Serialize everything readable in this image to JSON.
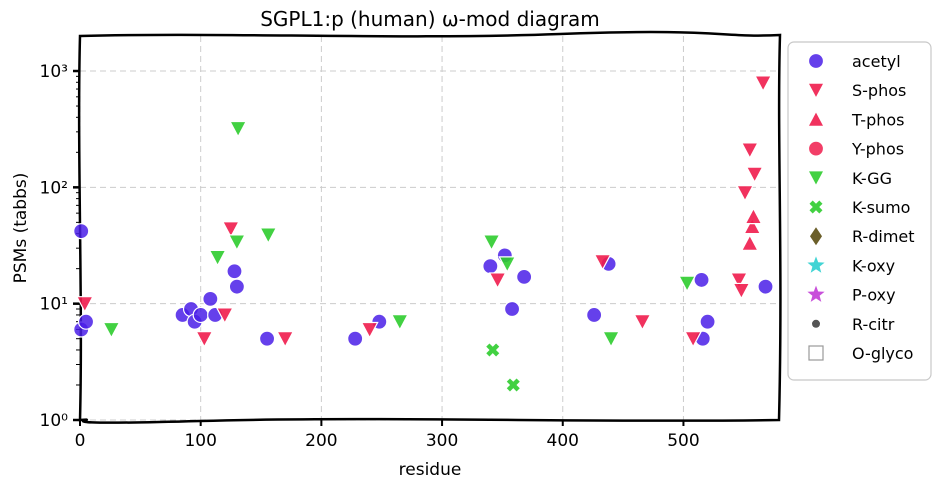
{
  "chart_data": {
    "type": "scatter",
    "title": "SGPL1:p (human) ω-mod diagram",
    "xlabel": "residue",
    "ylabel": "PSMs (tabbs)",
    "xlim": [
      0,
      580
    ],
    "ylim": [
      1,
      2000
    ],
    "yscale": "log",
    "x_ticks": [
      0,
      100,
      200,
      300,
      400,
      500
    ],
    "y_ticks": [
      {
        "value": 1,
        "label": "10⁰"
      },
      {
        "value": 10,
        "label": "10¹"
      },
      {
        "value": 100,
        "label": "10²"
      },
      {
        "value": 1000,
        "label": "10³"
      }
    ],
    "grid": true,
    "legend_position": "outside-right",
    "series": [
      {
        "name": "acetyl",
        "marker": "circle",
        "color": "#4a1ee8",
        "points": [
          [
            1,
            42
          ],
          [
            1,
            6
          ],
          [
            5,
            7
          ],
          [
            85,
            8
          ],
          [
            92,
            9
          ],
          [
            95,
            7
          ],
          [
            100,
            8
          ],
          [
            108,
            11
          ],
          [
            112,
            8
          ],
          [
            128,
            19
          ],
          [
            130,
            14
          ],
          [
            155,
            5
          ],
          [
            228,
            5
          ],
          [
            248,
            7
          ],
          [
            340,
            21
          ],
          [
            352,
            26
          ],
          [
            358,
            9
          ],
          [
            368,
            17
          ],
          [
            426,
            8
          ],
          [
            438,
            22
          ],
          [
            515,
            16
          ],
          [
            516,
            5
          ],
          [
            520,
            7
          ],
          [
            568,
            14
          ]
        ]
      },
      {
        "name": "S-phos",
        "marker": "triangle-down",
        "color": "#f01c4c",
        "points": [
          [
            4,
            10
          ],
          [
            103,
            5
          ],
          [
            120,
            8
          ],
          [
            125,
            44
          ],
          [
            170,
            5
          ],
          [
            240,
            6
          ],
          [
            346,
            16
          ],
          [
            433,
            23
          ],
          [
            466,
            7
          ],
          [
            508,
            5
          ],
          [
            546,
            16
          ],
          [
            548,
            13
          ],
          [
            551,
            90
          ],
          [
            555,
            210
          ],
          [
            559,
            130
          ],
          [
            566,
            790
          ]
        ]
      },
      {
        "name": "T-phos",
        "marker": "triangle-up",
        "color": "#f01c4c",
        "points": [
          [
            555,
            33
          ],
          [
            557,
            46
          ],
          [
            558,
            56
          ]
        ]
      },
      {
        "name": "Y-phos",
        "marker": "circle",
        "color": "#f01c4c",
        "points": []
      },
      {
        "name": "K-GG",
        "marker": "triangle-down",
        "color": "#2ecc2e",
        "points": [
          [
            26,
            6
          ],
          [
            114,
            25
          ],
          [
            130,
            34
          ],
          [
            131,
            320
          ],
          [
            156,
            39
          ],
          [
            265,
            7
          ],
          [
            341,
            34
          ],
          [
            354,
            22
          ],
          [
            440,
            5
          ],
          [
            503,
            15
          ]
        ]
      },
      {
        "name": "K-sumo",
        "marker": "x",
        "color": "#2ecc2e",
        "points": [
          [
            342,
            4
          ],
          [
            359,
            2
          ]
        ]
      },
      {
        "name": "R-dimet",
        "marker": "diamond",
        "color": "#6b5f2a",
        "points": []
      },
      {
        "name": "K-oxy",
        "marker": "star",
        "color": "#2ecfcf",
        "points": []
      },
      {
        "name": "P-oxy",
        "marker": "star",
        "color": "#c23dd6",
        "points": []
      },
      {
        "name": "R-citr",
        "marker": "small-circle",
        "color": "#555555",
        "points": []
      },
      {
        "name": "O-glyco",
        "marker": "square-open",
        "color": "#999999",
        "points": []
      }
    ]
  }
}
